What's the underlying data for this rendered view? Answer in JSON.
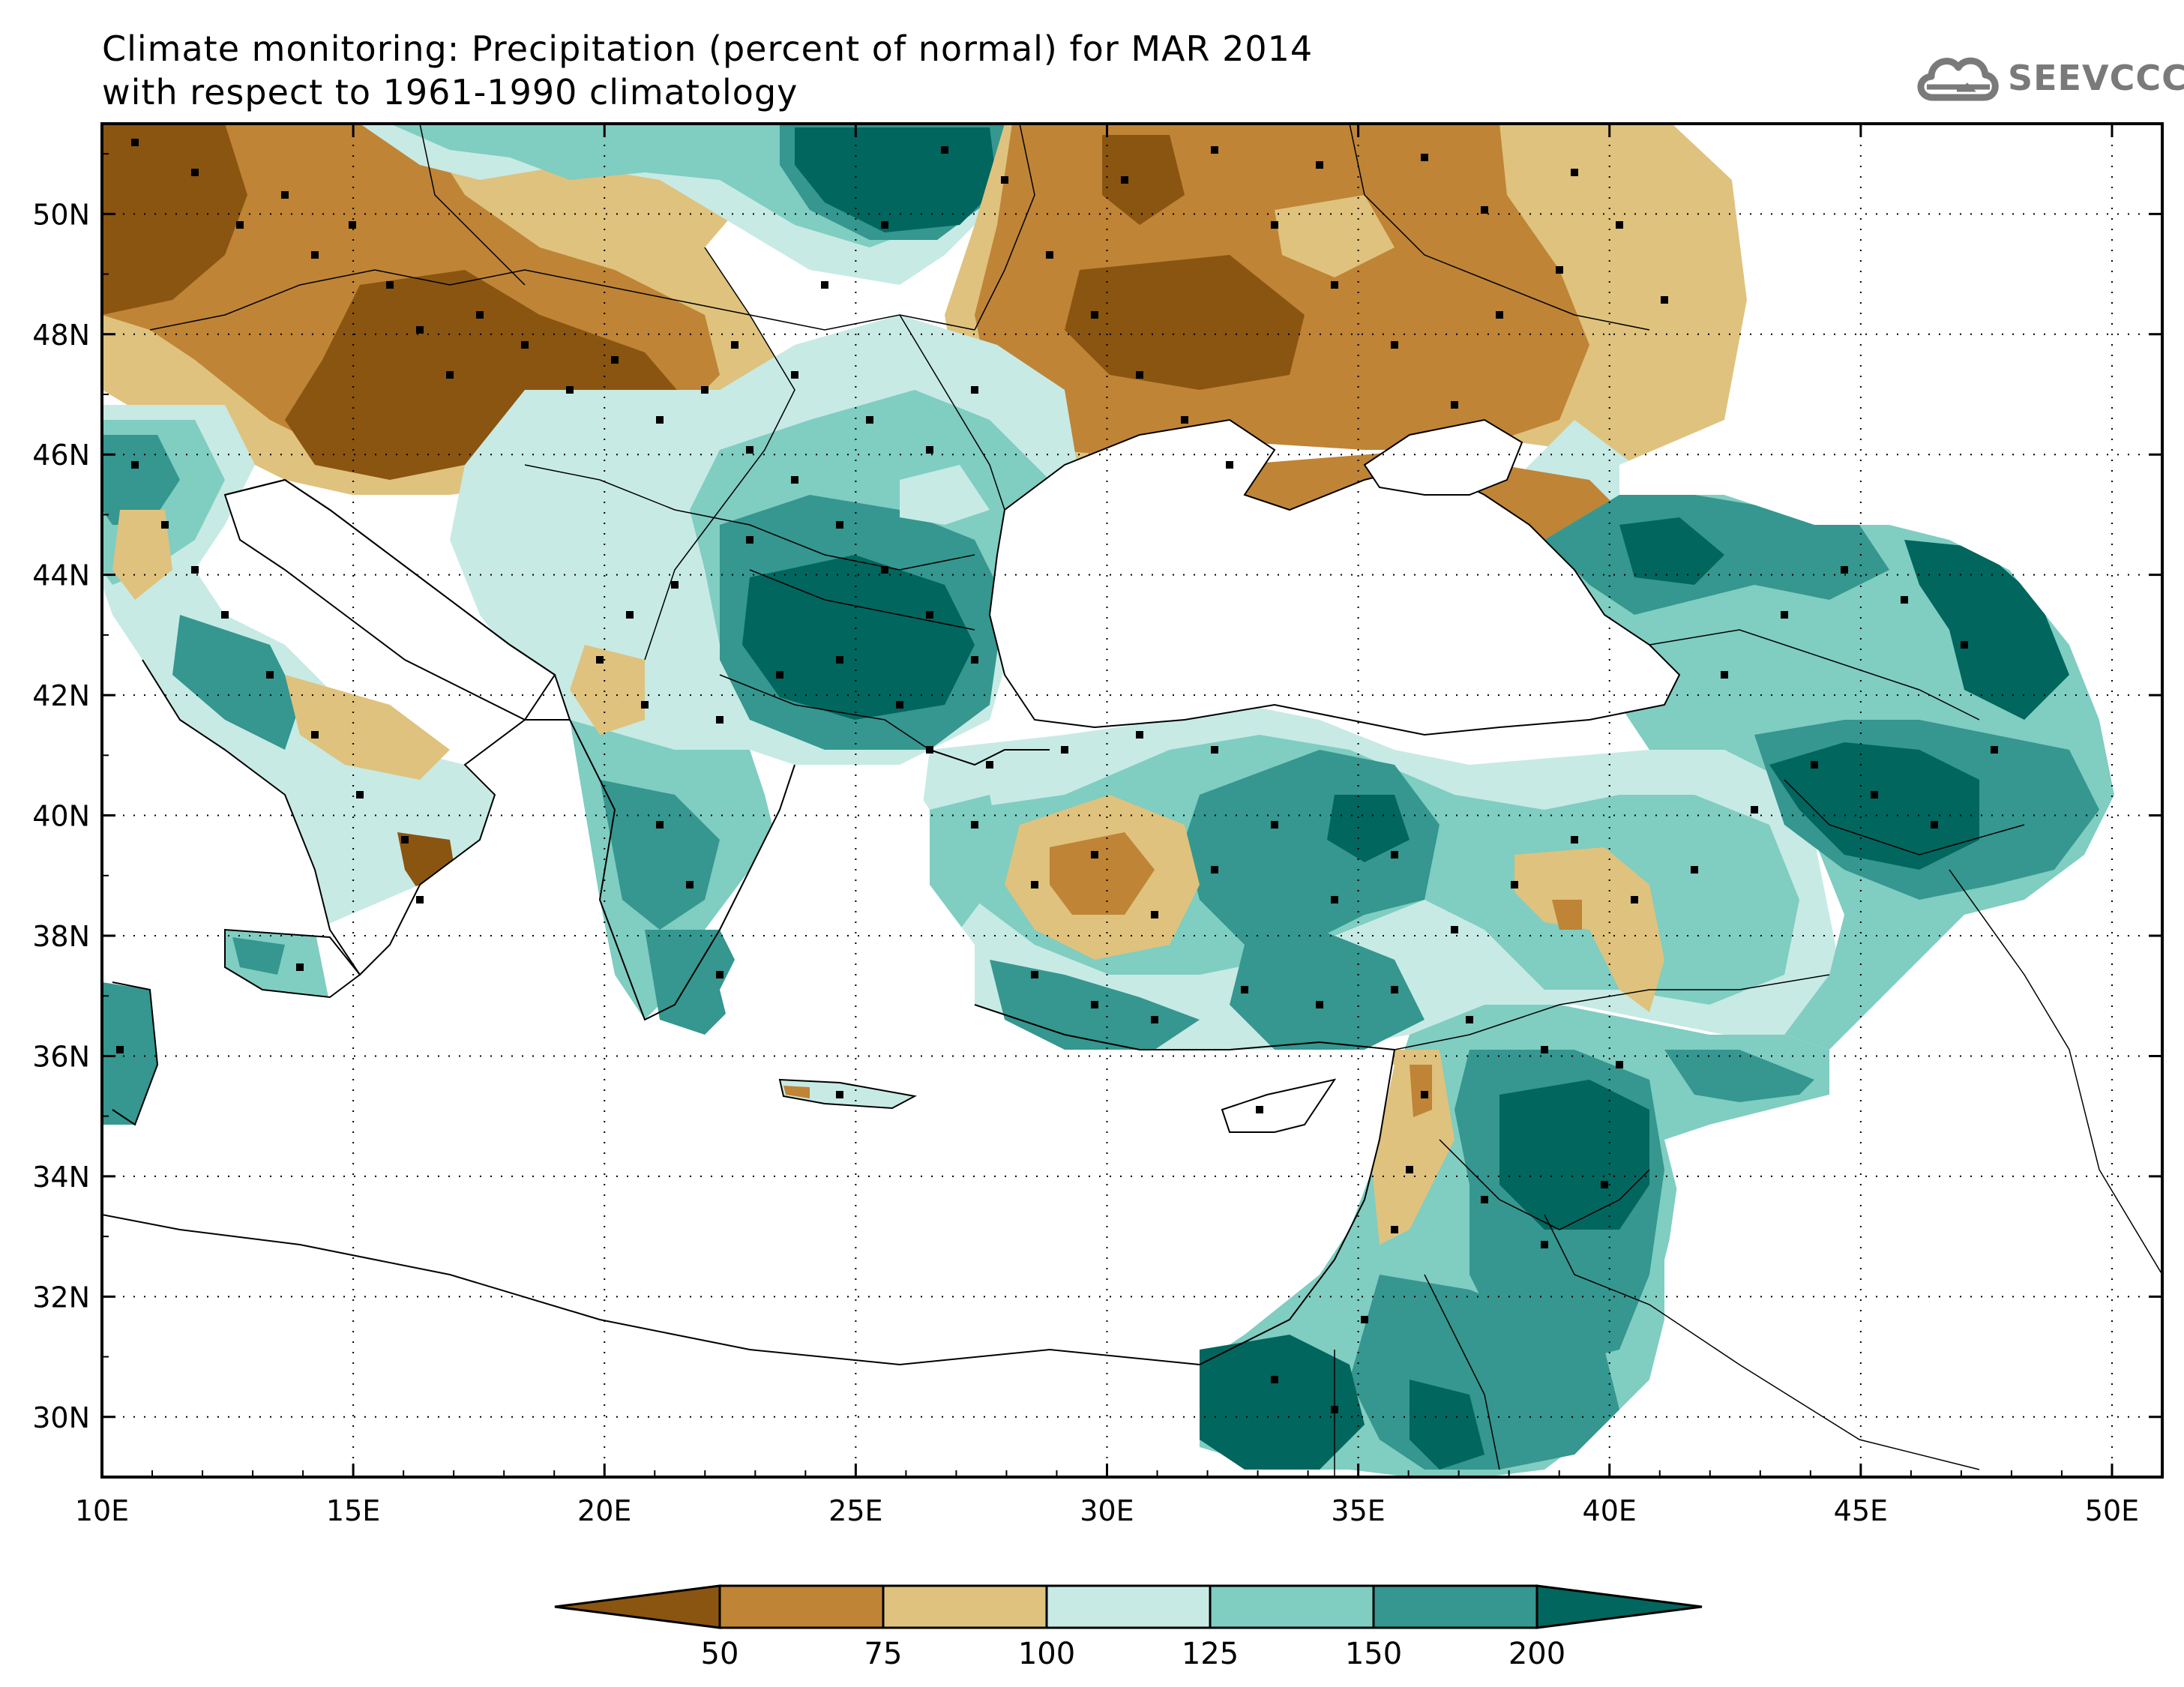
{
  "title": {
    "line1": "Climate monitoring: Precipitation (percent of normal) for MAR 2014",
    "line2": "with respect to 1961-1990 climatology"
  },
  "logo": {
    "text": "SEEVCCC",
    "icon": "cloud-icon"
  },
  "map": {
    "lon_range": [
      10,
      51
    ],
    "lat_range": [
      29,
      51.5
    ],
    "x_ticks": [
      "10E",
      "15E",
      "20E",
      "25E",
      "30E",
      "35E",
      "40E",
      "45E",
      "50E"
    ],
    "y_ticks": [
      "30N",
      "32N",
      "34N",
      "36N",
      "38N",
      "40N",
      "42N",
      "44N",
      "46N",
      "48N",
      "50N"
    ],
    "grid": "dotted"
  },
  "colorbar": {
    "labels": [
      "50",
      "75",
      "100",
      "125",
      "150",
      "200"
    ],
    "colors": [
      "#8a5510",
      "#bf8435",
      "#dfc27d",
      "#c7eae5",
      "#80cdc1",
      "#35978f",
      "#01665e"
    ]
  }
}
